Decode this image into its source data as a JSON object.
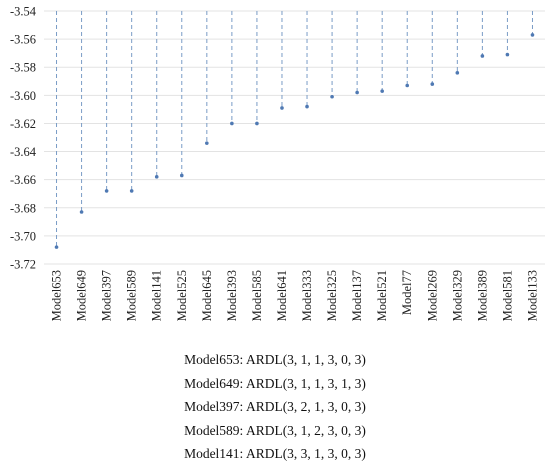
{
  "chart_data": {
    "type": "scatter",
    "style": "dropline-from-top",
    "categories": [
      "Model653",
      "Model649",
      "Model397",
      "Model589",
      "Model141",
      "Model525",
      "Model645",
      "Model393",
      "Model585",
      "Model641",
      "Model333",
      "Model325",
      "Model137",
      "Model521",
      "Model77",
      "Model269",
      "Model329",
      "Model389",
      "Model581",
      "Model133"
    ],
    "values": [
      -3.708,
      -3.683,
      -3.668,
      -3.668,
      -3.658,
      -3.657,
      -3.634,
      -3.62,
      -3.62,
      -3.609,
      -3.608,
      -3.601,
      -3.598,
      -3.597,
      -3.593,
      -3.592,
      -3.584,
      -3.572,
      -3.571,
      -3.557
    ],
    "ylim": [
      -3.72,
      -3.54
    ],
    "yticks": [
      "-3.54",
      "-3.56",
      "-3.58",
      "-3.60",
      "-3.62",
      "-3.64",
      "-3.66",
      "-3.68",
      "-3.70",
      "-3.72"
    ],
    "grid": true,
    "title": "",
    "xlabel": "",
    "ylabel": "",
    "colors": {
      "stem": "#7a9cc6",
      "point": "#4f79b3",
      "grid": "#e3e3e3"
    }
  },
  "legend_lines": [
    "Model653: ARDL(3, 1, 1, 3, 0, 3)",
    "Model649: ARDL(3, 1, 1, 3, 1, 3)",
    "Model397: ARDL(3, 2, 1, 3, 0, 3)",
    "Model589: ARDL(3, 1, 2, 3, 0, 3)",
    "Model141: ARDL(3, 3, 1, 3, 0, 3)"
  ]
}
